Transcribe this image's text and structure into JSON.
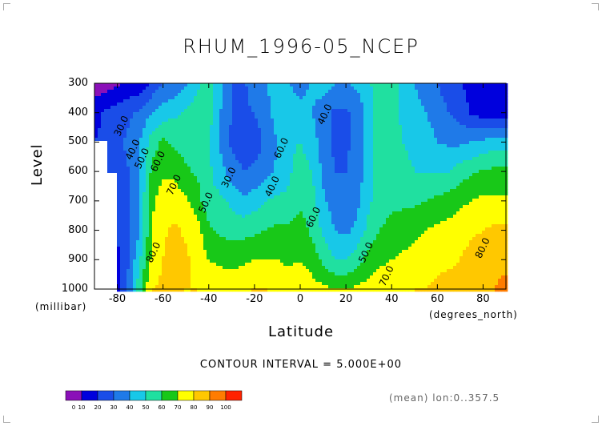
{
  "chart_data": {
    "type": "heatmap",
    "title": "RHUM_1996-05_NCEP",
    "xlabel": "Latitude",
    "ylabel": "Level",
    "x_unit": "(degrees_north)",
    "y_unit": "(millibar)",
    "xlim": [
      -90,
      90
    ],
    "ylim": [
      1000,
      300
    ],
    "x_ticks": [
      "-80",
      "-60",
      "-40",
      "-20",
      "0",
      "20",
      "40",
      "60",
      "80"
    ],
    "y_ticks": [
      "300",
      "400",
      "500",
      "600",
      "700",
      "800",
      "900",
      "1000"
    ],
    "x": [
      -90,
      -85,
      -80,
      -75,
      -70,
      -65,
      -60,
      -55,
      -50,
      -45,
      -40,
      -35,
      -30,
      -25,
      -20,
      -15,
      -10,
      -5,
      0,
      5,
      10,
      15,
      20,
      25,
      30,
      35,
      40,
      45,
      50,
      55,
      60,
      65,
      70,
      75,
      80,
      85,
      90
    ],
    "levels": [
      300,
      400,
      500,
      600,
      700,
      800,
      900,
      1000
    ],
    "z": [
      [
        5,
        5,
        8,
        12,
        12,
        22,
        30,
        32,
        38,
        48,
        55,
        45,
        30,
        28,
        35,
        40,
        45,
        40,
        35,
        42,
        45,
        40,
        40,
        42,
        48,
        58,
        55,
        45,
        40,
        30,
        30,
        25,
        20,
        18,
        12,
        10,
        10
      ],
      [
        15,
        22,
        25,
        28,
        32,
        40,
        45,
        48,
        52,
        55,
        55,
        40,
        30,
        28,
        30,
        36,
        45,
        48,
        45,
        40,
        35,
        28,
        28,
        33,
        45,
        55,
        52,
        48,
        46,
        40,
        35,
        30,
        25,
        18,
        15,
        15,
        15
      ],
      [
        20,
        25,
        28,
        32,
        40,
        55,
        62,
        58,
        55,
        55,
        50,
        38,
        28,
        25,
        25,
        32,
        40,
        48,
        50,
        45,
        35,
        28,
        28,
        33,
        45,
        55,
        55,
        50,
        48,
        45,
        40,
        38,
        38,
        40,
        42,
        45,
        45
      ],
      [
        null,
        25,
        25,
        30,
        40,
        62,
        68,
        68,
        62,
        58,
        52,
        45,
        35,
        30,
        32,
        36,
        42,
        48,
        55,
        50,
        38,
        30,
        30,
        35,
        45,
        55,
        55,
        52,
        50,
        50,
        50,
        50,
        55,
        58,
        62,
        62,
        62
      ],
      [
        null,
        null,
        22,
        30,
        42,
        68,
        75,
        75,
        72,
        65,
        52,
        52,
        48,
        42,
        45,
        50,
        52,
        52,
        58,
        55,
        42,
        35,
        33,
        38,
        48,
        56,
        58,
        58,
        58,
        60,
        62,
        64,
        68,
        70,
        72,
        72,
        72
      ],
      [
        null,
        null,
        20,
        28,
        40,
        70,
        78,
        82,
        78,
        74,
        62,
        58,
        56,
        56,
        58,
        60,
        62,
        62,
        65,
        58,
        48,
        40,
        38,
        42,
        54,
        60,
        63,
        65,
        67,
        70,
        72,
        74,
        76,
        78,
        80,
        82,
        82
      ],
      [
        null,
        null,
        18,
        30,
        50,
        72,
        80,
        88,
        82,
        76,
        70,
        68,
        66,
        68,
        70,
        70,
        70,
        68,
        70,
        66,
        58,
        50,
        50,
        56,
        64,
        68,
        70,
        72,
        74,
        76,
        77,
        78,
        80,
        84,
        86,
        88,
        88
      ],
      [
        null,
        null,
        18,
        32,
        58,
        80,
        82,
        82,
        80,
        80,
        78,
        76,
        78,
        78,
        80,
        80,
        78,
        76,
        75,
        74,
        72,
        70,
        70,
        72,
        74,
        76,
        76,
        78,
        80,
        80,
        82,
        84,
        84,
        86,
        88,
        90,
        92
      ]
    ],
    "contour_labels": [
      "30.0",
      "40.0",
      "50.0",
      "60.0",
      "70.0",
      "80.0",
      "30.0",
      "40.0",
      "50.0",
      "60.0",
      "40.0",
      "50.0",
      "70.0",
      "60.0",
      "80.0"
    ],
    "footer": "CONTOUR INTERVAL = 5.000E+00",
    "subtitle": "(mean) lon:0..357.5",
    "colorbar": {
      "ticks": [
        "0",
        "10",
        "20",
        "30",
        "40",
        "50",
        "60",
        "70",
        "80",
        "90",
        "100"
      ],
      "colors": [
        "#8a10b8",
        "#0000dd",
        "#1a4de8",
        "#1f7ae8",
        "#18c8e8",
        "#20e0a0",
        "#18c818",
        "#ffff00",
        "#ffc800",
        "#ff7c00",
        "#ff2200"
      ]
    },
    "grid": false
  }
}
